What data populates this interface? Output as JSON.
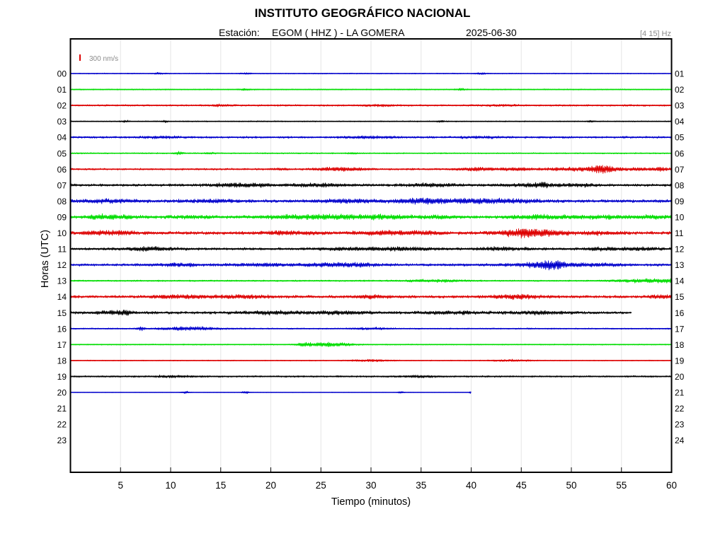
{
  "header": {
    "title": "INSTITUTO GEOGRÁFICO NACIONAL",
    "station_label": "Estación:",
    "station_value": "EGOM ( HHZ ) - LA GOMERA",
    "date": "2025-06-30",
    "filter_band": "[4 15] Hz"
  },
  "chart_data": {
    "type": "line",
    "title": "INSTITUTO GEOGRÁFICO NACIONAL",
    "xlabel": "Tiempo (minutos)",
    "ylabel": "Horas (UTC)",
    "xlim": [
      0,
      60
    ],
    "x_ticks": [
      "5",
      "10",
      "15",
      "20",
      "25",
      "30",
      "35",
      "40",
      "45",
      "50",
      "55",
      "60"
    ],
    "y_ticks_left": [
      "00",
      "01",
      "02",
      "03",
      "04",
      "05",
      "06",
      "07",
      "08",
      "09",
      "10",
      "11",
      "12",
      "13",
      "14",
      "15",
      "16",
      "17",
      "18",
      "19",
      "20",
      "21",
      "22",
      "23"
    ],
    "y_ticks_right": [
      "01",
      "02",
      "03",
      "04",
      "05",
      "06",
      "07",
      "08",
      "09",
      "10",
      "11",
      "12",
      "13",
      "14",
      "15",
      "16",
      "17",
      "18",
      "19",
      "20",
      "21",
      "22",
      "23",
      "24"
    ],
    "scale_label": "300 nm/s",
    "scale_color": "#dd0000",
    "grid": "vertical",
    "trace_colors": [
      "#0000cc",
      "#00dd00",
      "#dd0000",
      "#000000"
    ],
    "series": [
      {
        "hour": "00",
        "color": "#0000cc",
        "base": 0.5,
        "end_min": 60,
        "events": [
          [
            8.8,
            0.6,
            1.2
          ],
          [
            17.5,
            0.6,
            1.2
          ],
          [
            41,
            0.6,
            1.5
          ]
        ]
      },
      {
        "hour": "01",
        "color": "#00dd00",
        "base": 0.6,
        "end_min": 60,
        "events": [
          [
            17.5,
            0.5,
            1.5
          ],
          [
            39,
            0.5,
            1.5
          ]
        ]
      },
      {
        "hour": "02",
        "color": "#dd0000",
        "base": 0.9,
        "end_min": 60,
        "events": [
          [
            15,
            1,
            1.2
          ],
          [
            31,
            1.5,
            1.2
          ],
          [
            43,
            1.5,
            1.2
          ]
        ]
      },
      {
        "hour": "03",
        "color": "#000000",
        "base": 0.6,
        "end_min": 60,
        "events": [
          [
            5.5,
            0.4,
            1.5
          ],
          [
            9.5,
            0.3,
            1.5
          ],
          [
            37,
            0.4,
            1.5
          ],
          [
            52,
            0.4,
            1.3
          ]
        ]
      },
      {
        "hour": "04",
        "color": "#0000cc",
        "base": 1.1,
        "end_min": 60,
        "events": [
          [
            9,
            2,
            1.3
          ],
          [
            30,
            3,
            1.3
          ],
          [
            41,
            2,
            1.2
          ]
        ]
      },
      {
        "hour": "05",
        "color": "#00dd00",
        "base": 0.7,
        "end_min": 60,
        "events": [
          [
            10.8,
            0.4,
            2.5
          ],
          [
            14,
            0.5,
            1.2
          ],
          [
            28,
            0.6,
            1.2
          ]
        ]
      },
      {
        "hour": "06",
        "color": "#dd0000",
        "base": 1.0,
        "end_min": 60,
        "events": [
          [
            21,
            0.8,
            1.3
          ],
          [
            27,
            2.5,
            2.6
          ],
          [
            40.5,
            2,
            2.3
          ],
          [
            44.5,
            1.5,
            2
          ],
          [
            50,
            3,
            2
          ],
          [
            53.2,
            1.2,
            6
          ],
          [
            56.5,
            1.5,
            2
          ],
          [
            59,
            1,
            2.2
          ]
        ]
      },
      {
        "hour": "07",
        "color": "#000000",
        "base": 1.4,
        "end_min": 60,
        "events": [
          [
            17,
            3,
            2.6
          ],
          [
            24.5,
            3,
            1.8
          ],
          [
            36,
            3,
            1.5
          ],
          [
            46.5,
            3,
            2.2
          ],
          [
            47.3,
            0.3,
            3
          ],
          [
            51,
            1.5,
            1.5
          ]
        ]
      },
      {
        "hour": "08",
        "color": "#0000cc",
        "base": 1.6,
        "end_min": 60,
        "events": [
          [
            4,
            3,
            1.8
          ],
          [
            14,
            3,
            1.6
          ],
          [
            28,
            4,
            1.6
          ],
          [
            34.5,
            2,
            1.8
          ],
          [
            38.8,
            5,
            2.5
          ],
          [
            44,
            3,
            1.8
          ]
        ]
      },
      {
        "hour": "09",
        "color": "#00dd00",
        "base": 1.6,
        "end_min": 60,
        "events": [
          [
            4,
            2.5,
            2.8
          ],
          [
            12,
            2,
            1.4
          ],
          [
            22,
            3,
            1.8
          ],
          [
            27,
            4,
            2.2
          ],
          [
            31.5,
            4,
            1.8
          ],
          [
            37,
            2,
            1.5
          ],
          [
            47,
            3,
            2.5
          ],
          [
            53,
            2.5,
            1.8
          ],
          [
            58,
            2,
            1.6
          ]
        ]
      },
      {
        "hour": "10",
        "color": "#dd0000",
        "base": 1.7,
        "end_min": 60,
        "events": [
          [
            4,
            2.5,
            2.5
          ],
          [
            22,
            3,
            2
          ],
          [
            31.5,
            3,
            2
          ],
          [
            35,
            2,
            1.5
          ],
          [
            45,
            2.5,
            4.2
          ],
          [
            47.5,
            3,
            2.5
          ],
          [
            53,
            2,
            1.5
          ]
        ]
      },
      {
        "hour": "11",
        "color": "#000000",
        "base": 1.4,
        "end_min": 60,
        "events": [
          [
            8,
            2.5,
            2.3
          ],
          [
            28,
            3,
            1.6
          ],
          [
            33,
            3,
            1.8
          ],
          [
            43,
            3,
            1.6
          ],
          [
            53,
            2,
            1.6
          ],
          [
            57,
            2,
            1.6
          ]
        ]
      },
      {
        "hour": "12",
        "color": "#0000cc",
        "base": 1.4,
        "end_min": 60,
        "events": [
          [
            11,
            2,
            2
          ],
          [
            19,
            3,
            1.6
          ],
          [
            26,
            3,
            1.8
          ],
          [
            28.5,
            2.5,
            1.5
          ],
          [
            46.5,
            3,
            2.5
          ],
          [
            48.1,
            1,
            5.5
          ],
          [
            52,
            3,
            1.8
          ]
        ]
      },
      {
        "hour": "13",
        "color": "#00dd00",
        "base": 0.8,
        "end_min": 60,
        "events": [
          [
            36.5,
            3,
            1.8
          ],
          [
            57,
            3,
            2.2
          ],
          [
            59.5,
            1,
            2
          ]
        ]
      },
      {
        "hour": "14",
        "color": "#dd0000",
        "base": 1.5,
        "end_min": 60,
        "events": [
          [
            11,
            2.5,
            2
          ],
          [
            17,
            3,
            1.8
          ],
          [
            30,
            2,
            1.6
          ],
          [
            44.5,
            2.5,
            2.5
          ],
          [
            59,
            1,
            2.5
          ]
        ]
      },
      {
        "hour": "15",
        "color": "#000000",
        "base": 1.5,
        "end_min": 56,
        "events": [
          [
            5.5,
            0.3,
            3.5
          ],
          [
            4.5,
            2,
            2
          ],
          [
            20,
            3,
            1.8
          ],
          [
            27,
            3,
            1.8
          ],
          [
            38,
            3,
            1.6
          ],
          [
            47,
            3,
            1.6
          ]
        ]
      },
      {
        "hour": "16",
        "color": "#0000cc",
        "base": 0.7,
        "end_min": 60,
        "events": [
          [
            7,
            0.3,
            3
          ],
          [
            12,
            3,
            2.6
          ],
          [
            30,
            2,
            1.4
          ]
        ]
      },
      {
        "hour": "17",
        "color": "#00dd00",
        "base": 0.6,
        "end_min": 60,
        "events": [
          [
            23.5,
            1,
            3
          ],
          [
            25.5,
            1,
            2.5
          ],
          [
            27,
            1.5,
            2.2
          ]
        ]
      },
      {
        "hour": "18",
        "color": "#dd0000",
        "base": 0.5,
        "end_min": 60,
        "events": [
          [
            30,
            2,
            1.5
          ],
          [
            44,
            2,
            1.4
          ]
        ]
      },
      {
        "hour": "19",
        "color": "#000000",
        "base": 0.9,
        "end_min": 60,
        "events": [
          [
            10,
            2,
            1.3
          ],
          [
            35,
            2,
            1.3
          ]
        ]
      },
      {
        "hour": "20",
        "color": "#0000cc",
        "base": 0.25,
        "end_min": 40,
        "events": [
          [
            11.5,
            0.4,
            1.8
          ],
          [
            17.5,
            0.4,
            2
          ],
          [
            33,
            0.3,
            1.5
          ],
          [
            39.9,
            0.1,
            2.5
          ]
        ]
      }
    ]
  }
}
